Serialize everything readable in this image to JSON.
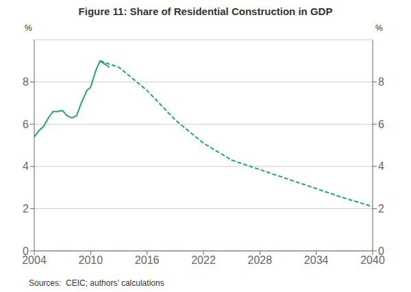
{
  "chart_data": {
    "type": "line",
    "title": "Figure 11: Share of Residential Construction in GDP",
    "annotations": [
      "Sources:  CEIC; authors’ calculations"
    ],
    "ylabel": "%",
    "y2label": "%",
    "xlim": [
      2004,
      2040
    ],
    "xticks": [
      2004,
      2010,
      2016,
      2022,
      2028,
      2034,
      2040
    ],
    "ylim": [
      0,
      10
    ],
    "yticks": [
      0,
      2,
      4,
      6,
      8
    ],
    "y2lim": [
      0,
      10
    ],
    "y2ticks": [
      0,
      2,
      4,
      6,
      8
    ],
    "grid": true,
    "series": [
      {
        "x": [
          2004,
          2004.5,
          2005,
          2005.5,
          2006,
          2006.5,
          2007,
          2007.5,
          2008,
          2008.5,
          2009,
          2009.3,
          2009.6,
          2010,
          2010.3,
          2010.6,
          2011,
          2011.5,
          2012
        ],
        "values": [
          5.4,
          5.7,
          5.9,
          6.3,
          6.6,
          6.6,
          6.65,
          6.4,
          6.3,
          6.4,
          7.0,
          7.3,
          7.6,
          7.75,
          8.2,
          8.6,
          9.0,
          8.85,
          8.7
        ],
        "color": "#22AA55",
        "line_style": "solid"
      },
      {
        "x": [
          2011,
          2013,
          2016,
          2019,
          2022,
          2025,
          2028,
          2031,
          2034,
          2037,
          2040
        ],
        "values": [
          9.0,
          8.7,
          7.6,
          6.2,
          5.1,
          4.3,
          3.85,
          3.4,
          2.95,
          2.5,
          2.1
        ],
        "color": "#22AA55",
        "line_style": "dashed"
      }
    ]
  }
}
